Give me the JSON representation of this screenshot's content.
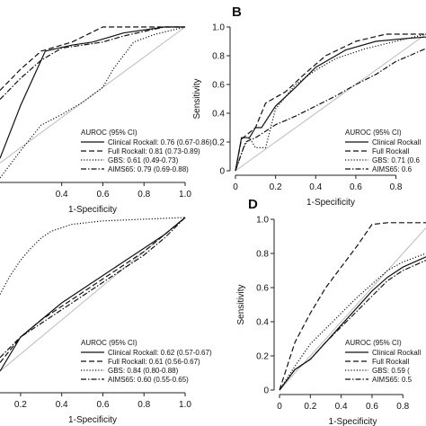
{
  "chart_data": [
    {
      "panel": "A",
      "type": "line",
      "show_letter": false,
      "show_ylabel": false,
      "xlabel": "1-Specificity",
      "ylabel": "Sensitivity",
      "xlim": [
        0.1,
        1.0
      ],
      "ylim": [
        0,
        1.0
      ],
      "xticks": [
        "0.4",
        "0.6",
        "0.8",
        "1.0"
      ],
      "xtick_values": [
        0.4,
        0.6,
        0.8,
        1.0
      ],
      "yticks": [],
      "ytick_values": [],
      "legend_title": "AUROC (95% CI)",
      "series": [
        {
          "name": "Clinical Rockall: 0.76 (0.67-0.86)",
          "style": "solid",
          "x": [
            0.1,
            0.2,
            0.32,
            0.45,
            0.55,
            0.7,
            0.9,
            1.0
          ],
          "y": [
            0.13,
            0.48,
            0.84,
            0.88,
            0.9,
            0.96,
            1.0,
            1.0
          ]
        },
        {
          "name": "Full Rockall: 0.81 (0.73-0.89)",
          "style": "dashed",
          "x": [
            0.1,
            0.2,
            0.3,
            0.45,
            0.6,
            0.8,
            1.0
          ],
          "y": [
            0.58,
            0.72,
            0.84,
            0.9,
            1.0,
            1.0,
            1.0
          ]
        },
        {
          "name": "GBS: 0.61 (0.49-0.73)",
          "style": "dotted",
          "x": [
            0.1,
            0.2,
            0.3,
            0.4,
            0.5,
            0.6,
            0.65,
            0.75,
            0.85,
            1.0
          ],
          "y": [
            0.0,
            0.18,
            0.35,
            0.42,
            0.5,
            0.6,
            0.72,
            0.9,
            0.95,
            1.0
          ]
        },
        {
          "name": "AIMS65: 0.79 (0.69-0.88)",
          "style": "dashdot",
          "x": [
            0.1,
            0.2,
            0.3,
            0.4,
            0.5,
            0.6,
            0.7,
            0.8,
            0.9,
            1.0
          ],
          "y": [
            0.52,
            0.66,
            0.78,
            0.86,
            0.88,
            0.9,
            0.94,
            0.97,
            1.0,
            1.0
          ]
        }
      ]
    },
    {
      "panel": "B",
      "type": "line",
      "show_letter": true,
      "show_ylabel": true,
      "xlabel": "1-Specificity",
      "ylabel": "Sensitivity",
      "xlim": [
        0,
        0.95
      ],
      "ylim": [
        0,
        1.0
      ],
      "xticks": [
        "0",
        "0.2",
        "0.4",
        "0.6",
        "0.8"
      ],
      "xtick_values": [
        0,
        0.2,
        0.4,
        0.6,
        0.8
      ],
      "yticks": [
        "0",
        "0.2",
        "0.4",
        "0.6",
        "0.8",
        "1.0"
      ],
      "ytick_values": [
        0,
        0.2,
        0.4,
        0.6,
        0.8,
        1.0
      ],
      "legend_title": "AUROC (95% CI)",
      "series": [
        {
          "name": "Clinical Rockall",
          "style": "solid",
          "x": [
            0.0,
            0.03,
            0.07,
            0.1,
            0.13,
            0.2,
            0.3,
            0.4,
            0.55,
            0.7,
            0.85,
            0.95
          ],
          "y": [
            0.0,
            0.23,
            0.23,
            0.3,
            0.3,
            0.45,
            0.58,
            0.72,
            0.84,
            0.9,
            0.92,
            0.93
          ]
        },
        {
          "name": "Full Rockall",
          "style": "dashed",
          "x": [
            0.0,
            0.03,
            0.1,
            0.15,
            0.25,
            0.35,
            0.45,
            0.6,
            0.75,
            0.9,
            0.95
          ],
          "y": [
            0.0,
            0.22,
            0.3,
            0.47,
            0.55,
            0.68,
            0.8,
            0.9,
            0.95,
            0.95,
            0.95
          ]
        },
        {
          "name": "GBS: 0.71 (0.6",
          "style": "dotted",
          "x": [
            0.0,
            0.04,
            0.07,
            0.1,
            0.15,
            0.2,
            0.3,
            0.4,
            0.5,
            0.65,
            0.8,
            0.95
          ],
          "y": [
            0.0,
            0.16,
            0.23,
            0.16,
            0.16,
            0.43,
            0.6,
            0.7,
            0.78,
            0.85,
            0.9,
            0.95
          ]
        },
        {
          "name": "AIMS65: 0.6",
          "style": "dashdot",
          "x": [
            0.0,
            0.05,
            0.1,
            0.2,
            0.3,
            0.4,
            0.5,
            0.6,
            0.7,
            0.8,
            0.95
          ],
          "y": [
            0.0,
            0.2,
            0.23,
            0.32,
            0.38,
            0.45,
            0.52,
            0.6,
            0.67,
            0.76,
            0.85
          ]
        }
      ]
    },
    {
      "panel": "C",
      "type": "line",
      "show_letter": false,
      "show_ylabel": false,
      "xlabel": "1-Specificity",
      "ylabel": "Sensitivity",
      "xlim": [
        0.1,
        1.0
      ],
      "ylim": [
        0,
        1.0
      ],
      "xticks": [
        "0.2",
        "0.4",
        "0.6",
        "0.8",
        "1.0"
      ],
      "xtick_values": [
        0.2,
        0.4,
        0.6,
        0.8,
        1.0
      ],
      "yticks": [],
      "ytick_values": [],
      "legend_title": "AUROC (95% CI)",
      "series": [
        {
          "name": "Clinical Rockall: 0.62 (0.57-0.67)",
          "style": "solid",
          "x": [
            0.1,
            0.2,
            0.3,
            0.4,
            0.5,
            0.6,
            0.7,
            0.8,
            0.9,
            1.0
          ],
          "y": [
            0.1,
            0.3,
            0.4,
            0.5,
            0.58,
            0.66,
            0.74,
            0.82,
            0.9,
            1.0
          ]
        },
        {
          "name": "Full Rockall: 0.61 (0.56-0.67)",
          "style": "dashed",
          "x": [
            0.1,
            0.2,
            0.3,
            0.4,
            0.5,
            0.6,
            0.7,
            0.8,
            0.9,
            1.0
          ],
          "y": [
            0.15,
            0.3,
            0.4,
            0.48,
            0.56,
            0.64,
            0.72,
            0.8,
            0.9,
            1.0
          ]
        },
        {
          "name": "GBS: 0.84 (0.80-0.88)",
          "style": "dotted",
          "x": [
            0.1,
            0.15,
            0.2,
            0.25,
            0.3,
            0.35,
            0.45,
            0.6,
            0.8,
            1.0
          ],
          "y": [
            0.55,
            0.66,
            0.75,
            0.82,
            0.88,
            0.92,
            0.96,
            0.98,
            0.99,
            1.0
          ]
        },
        {
          "name": "AIMS65: 0.60 (0.55-0.65)",
          "style": "dashdot",
          "x": [
            0.1,
            0.2,
            0.3,
            0.4,
            0.5,
            0.6,
            0.7,
            0.8,
            0.9,
            1.0
          ],
          "y": [
            0.18,
            0.3,
            0.38,
            0.46,
            0.54,
            0.62,
            0.7,
            0.78,
            0.88,
            1.0
          ]
        }
      ]
    },
    {
      "panel": "D",
      "type": "line",
      "show_letter": true,
      "show_ylabel": true,
      "xlabel": "1-Specificity",
      "ylabel": "Sensitivity",
      "xlim": [
        0,
        0.95
      ],
      "ylim": [
        0,
        1.0
      ],
      "xticks": [
        "0",
        "0.2",
        "0.4",
        "0.6",
        "0.8"
      ],
      "xtick_values": [
        0,
        0.2,
        0.4,
        0.6,
        0.8
      ],
      "yticks": [
        "0",
        "0.2",
        "0.4",
        "0.6",
        "0.8",
        "1.0"
      ],
      "ytick_values": [
        0,
        0.2,
        0.4,
        0.6,
        0.8,
        1.0
      ],
      "legend_title": "AUROC (95% CI)",
      "series": [
        {
          "name": "Clinical Rockall",
          "style": "solid",
          "x": [
            0.0,
            0.1,
            0.2,
            0.3,
            0.4,
            0.5,
            0.6,
            0.7,
            0.8,
            0.95
          ],
          "y": [
            0.0,
            0.12,
            0.18,
            0.28,
            0.38,
            0.48,
            0.58,
            0.66,
            0.72,
            0.78
          ]
        },
        {
          "name": "Full Rockall",
          "style": "dashed",
          "x": [
            0.0,
            0.1,
            0.2,
            0.3,
            0.4,
            0.5,
            0.6,
            0.7,
            0.8,
            0.95
          ],
          "y": [
            0.0,
            0.28,
            0.45,
            0.6,
            0.72,
            0.84,
            0.97,
            0.98,
            0.98,
            0.98
          ]
        },
        {
          "name": "GBS: 0.59 (",
          "style": "dotted",
          "x": [
            0.0,
            0.1,
            0.2,
            0.3,
            0.4,
            0.5,
            0.6,
            0.7,
            0.8,
            0.95
          ],
          "y": [
            0.0,
            0.14,
            0.27,
            0.36,
            0.45,
            0.54,
            0.62,
            0.7,
            0.75,
            0.8
          ]
        },
        {
          "name": "AIMS65: 0.5",
          "style": "dashdot",
          "x": [
            0.0,
            0.1,
            0.2,
            0.3,
            0.4,
            0.5,
            0.6,
            0.7,
            0.8,
            0.95
          ],
          "y": [
            0.0,
            0.12,
            0.18,
            0.28,
            0.37,
            0.46,
            0.55,
            0.64,
            0.7,
            0.76
          ]
        }
      ]
    }
  ]
}
